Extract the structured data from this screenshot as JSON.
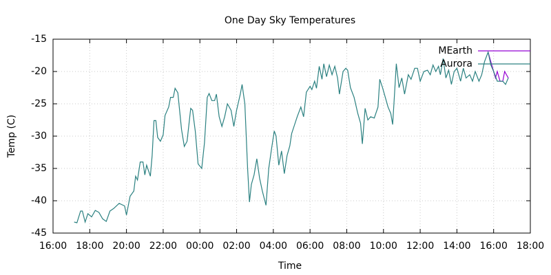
{
  "chart_data": {
    "type": "line",
    "title": "One Day Sky Temperatures",
    "xlabel": "Time",
    "ylabel": "Temp (C)",
    "xlim": [
      0,
      26
    ],
    "xticks": [
      {
        "value": 0,
        "label": "16:00"
      },
      {
        "value": 2,
        "label": "18:00"
      },
      {
        "value": 4,
        "label": "20:00"
      },
      {
        "value": 6,
        "label": "22:00"
      },
      {
        "value": 8,
        "label": "00:00"
      },
      {
        "value": 10,
        "label": "02:00"
      },
      {
        "value": 12,
        "label": "04:00"
      },
      {
        "value": 14,
        "label": "06:00"
      },
      {
        "value": 16,
        "label": "08:00"
      },
      {
        "value": 18,
        "label": "10:00"
      },
      {
        "value": 20,
        "label": "12:00"
      },
      {
        "value": 22,
        "label": "14:00"
      },
      {
        "value": 24,
        "label": "16:00"
      },
      {
        "value": 26,
        "label": "18:00"
      }
    ],
    "ylim": [
      -45,
      -15
    ],
    "yticks": [
      -45,
      -40,
      -35,
      -30,
      -25,
      -20,
      -15
    ],
    "grid": true,
    "legend": "top-right",
    "series": [
      {
        "name": "MEarth",
        "color": "#9400d3",
        "x": [
          23.7,
          23.9,
          24.1,
          24.2,
          24.35,
          24.5,
          24.6,
          24.8
        ],
        "values": [
          -17,
          -19,
          -21,
          -20,
          -21.5,
          -21.5,
          -20,
          -21
        ]
      },
      {
        "name": "Aurora",
        "color": "#2a8080",
        "x": [
          1.15,
          1.3,
          1.5,
          1.6,
          1.75,
          1.9,
          2.1,
          2.3,
          2.5,
          2.7,
          2.9,
          3.1,
          3.3,
          3.6,
          3.9,
          4.0,
          4.2,
          4.4,
          4.5,
          4.6,
          4.75,
          4.9,
          5.0,
          5.1,
          5.3,
          5.4,
          5.5,
          5.6,
          5.7,
          5.85,
          6.0,
          6.1,
          6.3,
          6.4,
          6.55,
          6.65,
          6.8,
          7.0,
          7.15,
          7.3,
          7.5,
          7.6,
          7.75,
          7.9,
          8.1,
          8.25,
          8.4,
          8.5,
          8.65,
          8.8,
          8.9,
          9.05,
          9.2,
          9.35,
          9.5,
          9.7,
          9.85,
          10.0,
          10.2,
          10.3,
          10.45,
          10.6,
          10.7,
          10.8,
          10.95,
          11.1,
          11.25,
          11.4,
          11.6,
          11.75,
          11.9,
          12.05,
          12.15,
          12.3,
          12.45,
          12.6,
          12.75,
          12.9,
          13.0,
          13.15,
          13.3,
          13.5,
          13.65,
          13.8,
          14.0,
          14.1,
          14.25,
          14.35,
          14.5,
          14.65,
          14.75,
          14.9,
          15.05,
          15.2,
          15.35,
          15.5,
          15.6,
          15.8,
          15.95,
          16.05,
          16.2,
          16.4,
          16.6,
          16.75,
          16.85,
          17.0,
          17.15,
          17.3,
          17.5,
          17.7,
          17.8,
          17.95,
          18.1,
          18.25,
          18.4,
          18.5,
          18.6,
          18.7,
          18.85,
          19.0,
          19.15,
          19.35,
          19.5,
          19.7,
          19.85,
          20.0,
          20.2,
          20.4,
          20.55,
          20.7,
          20.85,
          21.0,
          21.1,
          21.25,
          21.4,
          21.55,
          21.7,
          21.85,
          22.0,
          22.2,
          22.35,
          22.5,
          22.7,
          22.85,
          23.0,
          23.2,
          23.35,
          23.5,
          23.7,
          23.85,
          24.0,
          24.2,
          24.35,
          24.5,
          24.65,
          24.8
        ],
        "values": [
          -43.3,
          -43.4,
          -41.6,
          -41.6,
          -43.3,
          -42,
          -42.5,
          -41.5,
          -41.8,
          -42.8,
          -43.2,
          -41.6,
          -41.2,
          -40.4,
          -40.8,
          -42.2,
          -39.3,
          -38.5,
          -36.2,
          -36.8,
          -34,
          -34,
          -36,
          -34.5,
          -36.2,
          -33,
          -27.6,
          -27.6,
          -30.2,
          -30.8,
          -29.8,
          -26.8,
          -25.5,
          -24,
          -24,
          -22.6,
          -23.3,
          -29,
          -31.6,
          -30.8,
          -25.7,
          -26,
          -29.3,
          -34.3,
          -35,
          -31,
          -24,
          -23.4,
          -24.5,
          -24.5,
          -23.5,
          -27,
          -28.5,
          -27,
          -25,
          -26,
          -28.5,
          -26,
          -23.5,
          -22,
          -25,
          -35,
          -40.2,
          -37.5,
          -36,
          -33.5,
          -36.5,
          -38.5,
          -40.7,
          -35,
          -32,
          -29.2,
          -30,
          -34.5,
          -32.3,
          -35.8,
          -33,
          -31.5,
          -29.6,
          -28.3,
          -27,
          -25.5,
          -27,
          -23.2,
          -22.3,
          -22.8,
          -21.5,
          -22.6,
          -19.2,
          -21.2,
          -18.8,
          -20.8,
          -19,
          -20.5,
          -19.2,
          -21,
          -23.5,
          -20,
          -19.5,
          -19.8,
          -22.5,
          -24,
          -26.5,
          -28,
          -31.2,
          -25.7,
          -27.5,
          -27,
          -27.2,
          -25.5,
          -21.2,
          -22.5,
          -24,
          -25.5,
          -26.5,
          -28.2,
          -23.5,
          -18.8,
          -22.5,
          -21,
          -23.5,
          -20.5,
          -21.2,
          -19.5,
          -19.5,
          -21.5,
          -20,
          -19.8,
          -20.5,
          -19,
          -20,
          -19.2,
          -20.5,
          -18,
          -21,
          -19.8,
          -22,
          -20,
          -19.5,
          -21.5,
          -19.5,
          -21,
          -20.5,
          -21.5,
          -20,
          -21.5,
          -20.5,
          -18.5,
          -17,
          -19,
          -20,
          -21.5,
          -21.5,
          -21.5,
          -22,
          -21
        ]
      }
    ]
  }
}
